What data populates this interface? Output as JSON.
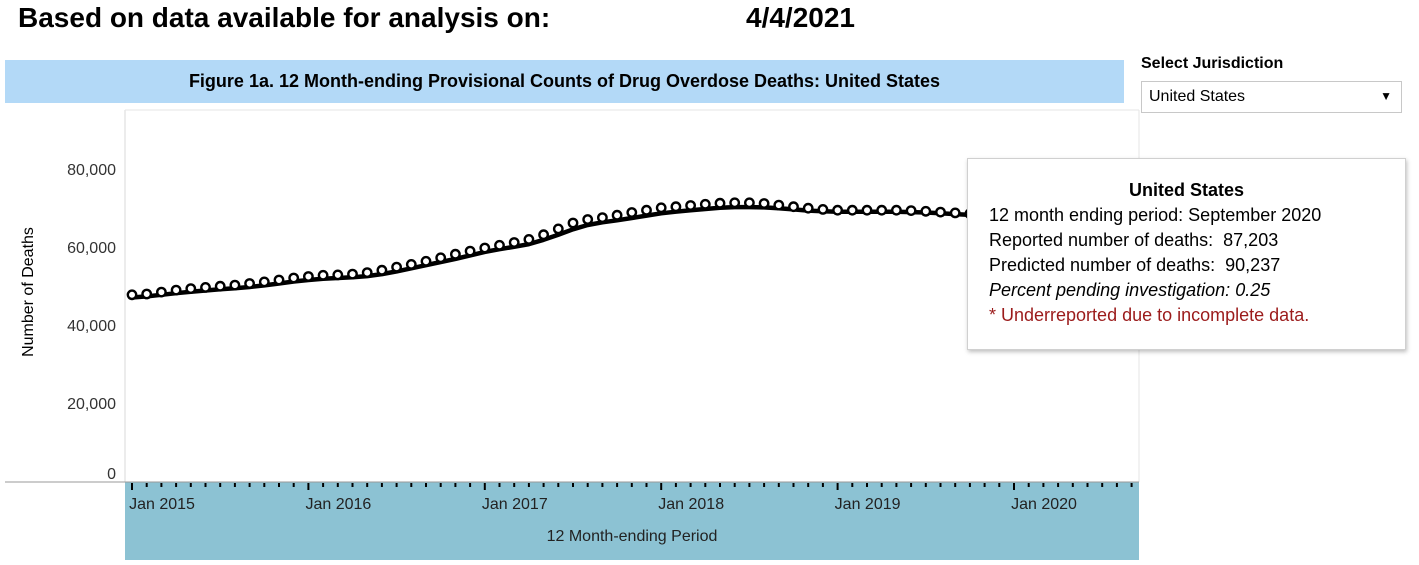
{
  "header": {
    "label": "Based on data available for analysis on:",
    "date": "4/4/2021"
  },
  "figure_title": "Figure 1a. 12 Month-ending Provisional Counts of Drug Overdose Deaths: United States",
  "jurisdiction": {
    "label": "Select Jurisdiction",
    "selected": "United States",
    "caret_icon": "triangle-down-icon"
  },
  "tooltip": {
    "title": "United States",
    "period_label": "12 month ending period:",
    "period_value": "September 2020",
    "reported_label": "Reported number of deaths:",
    "reported_value": "87,203",
    "predicted_label": "Predicted number of deaths:",
    "predicted_value": "90,237",
    "pending_label": "Percent pending investigation:",
    "pending_value": "0.25",
    "note": "* Underreported due to incomplete data."
  },
  "colors": {
    "title_band": "#b3d9f7",
    "axis_band": "#8cc2d3",
    "series": "#000000",
    "note": "#9b1b1b"
  },
  "chart_data": {
    "type": "line",
    "title": "Figure 1a. 12 Month-ending Provisional Counts of Drug Overdose Deaths: United States",
    "xlabel": "12 Month-ending Period",
    "ylabel": "Number of Deaths",
    "ylim": [
      0,
      95000
    ],
    "grid": false,
    "yticks": [
      0,
      20000,
      40000,
      60000,
      80000
    ],
    "ytick_labels": [
      "0",
      "20,000",
      "40,000",
      "60,000",
      "80,000"
    ],
    "xtick_labels": [
      "Jan 2015",
      "Jan 2016",
      "Jan 2017",
      "Jan 2018",
      "Jan 2019",
      "Jan 2020"
    ],
    "x_start": "Jan 2015",
    "x_end": "Sep 2020",
    "series": [
      {
        "style": "line",
        "values": [
          47300,
          47600,
          48000,
          48400,
          48800,
          49100,
          49400,
          49700,
          50000,
          50400,
          50900,
          51400,
          51800,
          52100,
          52300,
          52500,
          52800,
          53300,
          54000,
          54800,
          55600,
          56400,
          57200,
          58100,
          59000,
          59700,
          60300,
          61000,
          62100,
          63400,
          64800,
          65900,
          66600,
          67100,
          67700,
          68300,
          68900,
          69300,
          69700,
          70000,
          70300,
          70500,
          70500,
          70400,
          70200,
          69900,
          69600,
          69400,
          69300,
          69300,
          69300,
          69300,
          69300,
          69200,
          69100,
          68900,
          68700,
          68500,
          68400,
          68300,
          68300,
          68300,
          68400,
          68500,
          68700,
          69000,
          69600,
          70600,
          72300,
          74500,
          77000,
          79600,
          82000,
          83900,
          85700,
          87203
        ]
      },
      {
        "style": "points",
        "values": [
          48000,
          48200,
          48700,
          49200,
          49600,
          49900,
          50200,
          50500,
          50900,
          51300,
          51800,
          52300,
          52700,
          53000,
          53100,
          53300,
          53700,
          54300,
          55100,
          55800,
          56600,
          57500,
          58400,
          59200,
          60000,
          60700,
          61400,
          62200,
          63400,
          64900,
          66400,
          67300,
          67800,
          68400,
          69100,
          69700,
          70300,
          70600,
          70900,
          71200,
          71500,
          71600,
          71600,
          71400,
          71000,
          70600,
          70200,
          69900,
          69700,
          69700,
          69700,
          69700,
          69700,
          69600,
          69400,
          69200,
          69000,
          68800,
          68700,
          68700,
          68700,
          68800,
          68900,
          69000,
          69300,
          69600,
          70300,
          71400,
          73100,
          75400,
          78000,
          80700,
          83200,
          85300,
          87900,
          90237
        ]
      }
    ]
  }
}
